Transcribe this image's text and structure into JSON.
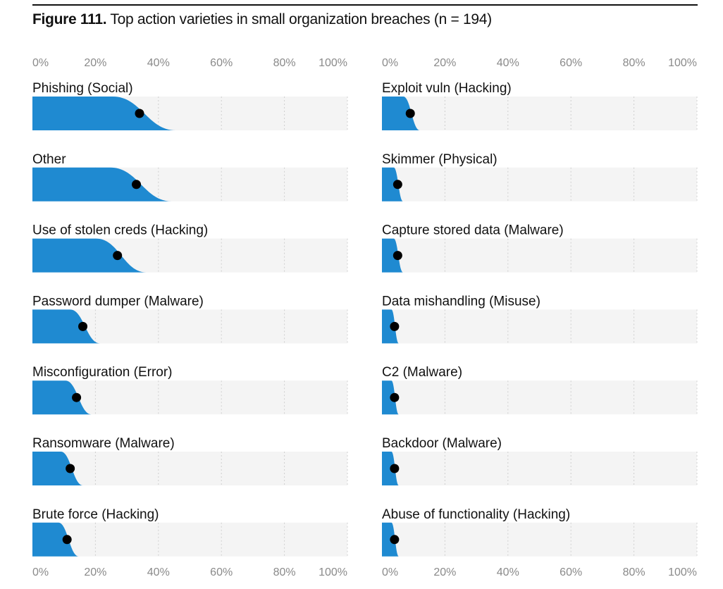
{
  "title": {
    "prefix": "Figure 111.",
    "text": "Top action varieties in small organization breaches (n = 194)"
  },
  "colors": {
    "fill": "#1f8ad1",
    "track": "#f4f4f4",
    "grid": "#cfcfcf",
    "dot": "#000000",
    "rule": "#111111"
  },
  "chart_data": {
    "type": "bar",
    "subtype": "distribution-slab with point estimate",
    "xlim": [
      0,
      100
    ],
    "x_unit": "%",
    "tick_labels": [
      "0%",
      "20%",
      "40%",
      "60%",
      "80%",
      "100%"
    ],
    "grid": true,
    "panels": [
      {
        "categories": [
          "Phishing (Social)",
          "Other",
          "Use of stolen creds (Hacking)",
          "Password dumper (Malware)",
          "Misconfiguration (Error)",
          "Ransomware (Malware)",
          "Brute force (Hacking)"
        ],
        "values": [
          34,
          33,
          27,
          16,
          14,
          12,
          11
        ]
      },
      {
        "categories": [
          "Exploit vuln (Hacking)",
          "Skimmer (Physical)",
          "Capture stored data (Malware)",
          "Data mishandling (Misuse)",
          "C2 (Malware)",
          "Backdoor (Malware)",
          "Abuse of functionality (Hacking)"
        ],
        "values": [
          9,
          5,
          5,
          4,
          4,
          4,
          4
        ]
      }
    ]
  }
}
